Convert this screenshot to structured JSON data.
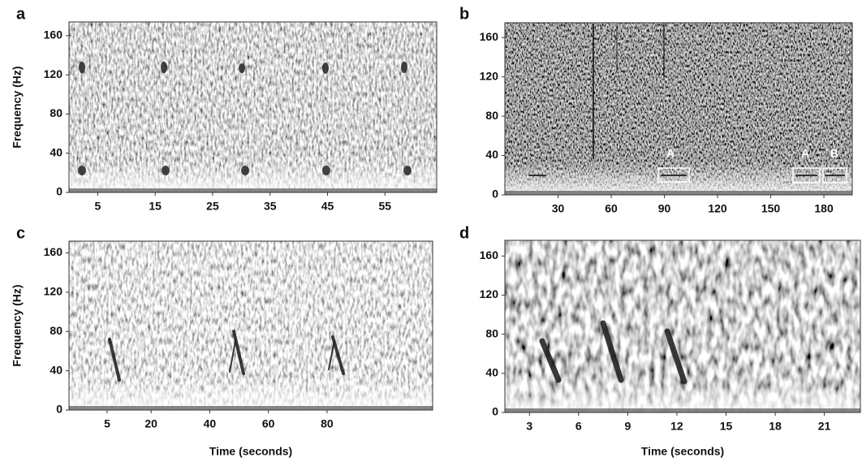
{
  "chart_data": [
    {
      "type": "spectrogram",
      "label": "a",
      "ylabel": "Frequency (Hz)",
      "xlim": [
        0,
        64
      ],
      "xticks": [
        5,
        15,
        25,
        35,
        45,
        55
      ],
      "ylim": [
        0,
        174
      ],
      "yticks": [
        0,
        40,
        80,
        120,
        160
      ]
    },
    {
      "type": "spectrogram",
      "label": "b",
      "xlim": [
        0,
        196
      ],
      "xticks": [
        30,
        60,
        90,
        120,
        150,
        180
      ],
      "ylim": [
        0,
        175
      ],
      "yticks": [
        0,
        40,
        80,
        120,
        160
      ],
      "annotations": [
        "A",
        "A",
        "B"
      ]
    },
    {
      "type": "spectrogram",
      "label": "c",
      "ylabel": "Frequency (Hz)",
      "xlabel": "Time (seconds)",
      "xlim": [
        -8,
        116
      ],
      "xticks": [
        5,
        20,
        40,
        60,
        80
      ],
      "ylim": [
        0,
        172
      ],
      "yticks": [
        0,
        40,
        80,
        120,
        160
      ]
    },
    {
      "type": "spectrogram",
      "label": "d",
      "xlabel": "Time (seconds)",
      "xlim": [
        1.5,
        23.2
      ],
      "xticks": [
        3,
        6,
        9,
        12,
        15,
        18,
        21
      ],
      "ylim": [
        0,
        176
      ],
      "yticks": [
        0,
        40,
        80,
        120,
        160
      ]
    }
  ]
}
